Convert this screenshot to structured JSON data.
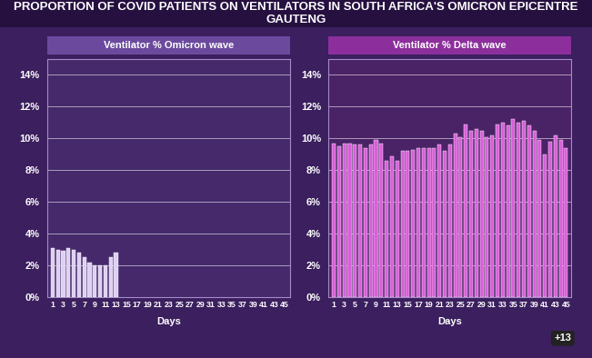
{
  "title": "PROPORTION OF COVID PATIENTS ON VENTILATORS IN SOUTH AFRICA'S OMICRON EPICENTRE GAUTENG",
  "annotation": "+13",
  "chart_data": [
    {
      "type": "bar",
      "title": "Ventilator % Omicron wave",
      "x_label": "Days",
      "x": [
        1,
        2,
        3,
        4,
        5,
        6,
        7,
        8,
        9,
        10,
        11,
        12,
        13
      ],
      "values": [
        3.1,
        3.0,
        2.9,
        3.1,
        3.0,
        2.8,
        2.5,
        2.2,
        2.0,
        2.0,
        2.0,
        2.5,
        2.8
      ],
      "color": "#ddd0f2",
      "xlim": [
        0,
        46
      ],
      "xticks": [
        1,
        3,
        5,
        7,
        9,
        11,
        13,
        15,
        17,
        19,
        21,
        23,
        25,
        27,
        29,
        31,
        33,
        35,
        37,
        39,
        41,
        43,
        45
      ],
      "ylim": [
        0,
        15
      ],
      "yticks": [
        {
          "value": 0,
          "label": "0%"
        },
        {
          "value": 2,
          "label": "2%"
        },
        {
          "value": 4,
          "label": "4%"
        },
        {
          "value": 6,
          "label": "6%"
        },
        {
          "value": 8,
          "label": "8%"
        },
        {
          "value": 10,
          "label": "10%"
        },
        {
          "value": 12,
          "label": "12%"
        },
        {
          "value": 14,
          "label": "14%"
        }
      ],
      "grid": true
    },
    {
      "type": "bar",
      "title": "Ventilator % Delta wave",
      "x_label": "Days",
      "x": [
        1,
        2,
        3,
        4,
        5,
        6,
        7,
        8,
        9,
        10,
        11,
        12,
        13,
        14,
        15,
        16,
        17,
        18,
        19,
        20,
        21,
        22,
        23,
        24,
        25,
        26,
        27,
        28,
        29,
        30,
        31,
        32,
        33,
        34,
        35,
        36,
        37,
        38,
        39,
        40,
        41,
        42,
        43,
        44,
        45
      ],
      "values": [
        9.7,
        9.5,
        9.7,
        9.7,
        9.6,
        9.6,
        9.4,
        9.6,
        9.9,
        9.7,
        8.6,
        8.9,
        8.6,
        9.2,
        9.2,
        9.3,
        9.4,
        9.4,
        9.4,
        9.4,
        9.6,
        9.2,
        9.6,
        10.3,
        10.1,
        10.9,
        10.5,
        10.6,
        10.5,
        10.1,
        10.2,
        10.9,
        11.0,
        10.8,
        11.2,
        11.0,
        11.1,
        10.8,
        10.5,
        9.9,
        9.0,
        9.8,
        10.2,
        9.9,
        9.4
      ],
      "color": "#d95fd9",
      "xlim": [
        0,
        46
      ],
      "xticks": [
        1,
        3,
        5,
        7,
        9,
        11,
        13,
        15,
        17,
        19,
        21,
        23,
        25,
        27,
        29,
        31,
        33,
        35,
        37,
        39,
        41,
        43,
        45
      ],
      "ylim": [
        0,
        15
      ],
      "yticks": [
        {
          "value": 0,
          "label": "0%"
        },
        {
          "value": 2,
          "label": "2%"
        },
        {
          "value": 4,
          "label": "4%"
        },
        {
          "value": 6,
          "label": "6%"
        },
        {
          "value": 8,
          "label": "8%"
        },
        {
          "value": 10,
          "label": "10%"
        },
        {
          "value": 12,
          "label": "12%"
        },
        {
          "value": 14,
          "label": "14%"
        }
      ],
      "grid": true
    }
  ]
}
